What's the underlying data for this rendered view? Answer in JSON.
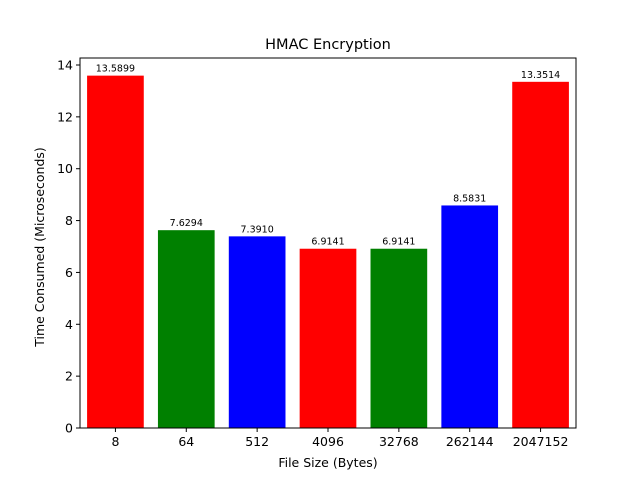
{
  "chart_data": {
    "type": "bar",
    "title": "HMAC Encryption",
    "xlabel": "File Size (Bytes)",
    "ylabel": "Time Consumed (Microseconds)",
    "categories": [
      "8",
      "64",
      "512",
      "4096",
      "32768",
      "262144",
      "2047152"
    ],
    "values": [
      13.5899,
      7.6294,
      7.391,
      6.9141,
      6.9141,
      8.5831,
      13.3514
    ],
    "data_labels": [
      "13.5899",
      "7.6294",
      "7.3910",
      "6.9141",
      "6.9141",
      "8.5831",
      "13.3514"
    ],
    "colors": [
      "#ff0000",
      "#008000",
      "#0000ff",
      "#ff0000",
      "#008000",
      "#0000ff",
      "#ff0000"
    ],
    "ylim": [
      0,
      14.27
    ],
    "yticks": [
      0,
      2,
      4,
      6,
      8,
      10,
      12,
      14
    ],
    "ytick_labels": [
      "0",
      "2",
      "4",
      "6",
      "8",
      "10",
      "12",
      "14"
    ],
    "grid": false,
    "legend": "none"
  }
}
